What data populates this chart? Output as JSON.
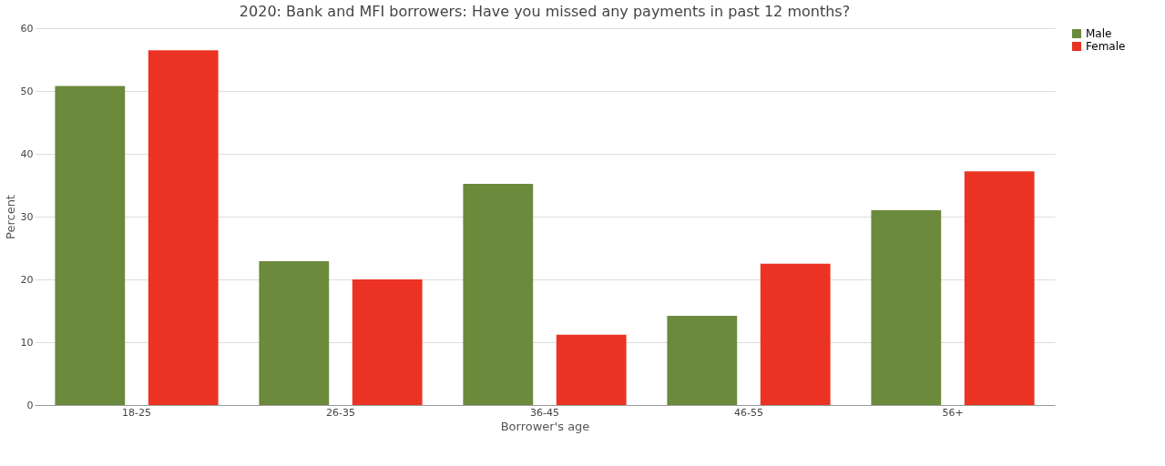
{
  "chart_data": {
    "type": "bar",
    "title": "2020: Bank and MFI borrowers: Have you missed any payments in past 12 months?",
    "xlabel": "Borrower's age",
    "ylabel": "Percent",
    "categories": [
      "18-25",
      "26-35",
      "36-45",
      "46-55",
      "56+"
    ],
    "series": [
      {
        "name": "Male",
        "color": "#6b8a3c",
        "values": [
          50.8,
          22.9,
          35.2,
          14.2,
          31.0
        ]
      },
      {
        "name": "Female",
        "color": "#ea3323",
        "values": [
          56.5,
          20.0,
          11.2,
          22.5,
          37.2
        ]
      }
    ],
    "ylim": [
      0,
      60
    ],
    "yticks": [
      0,
      10,
      20,
      30,
      40,
      50,
      60
    ],
    "grid": "y",
    "legend": "right"
  }
}
